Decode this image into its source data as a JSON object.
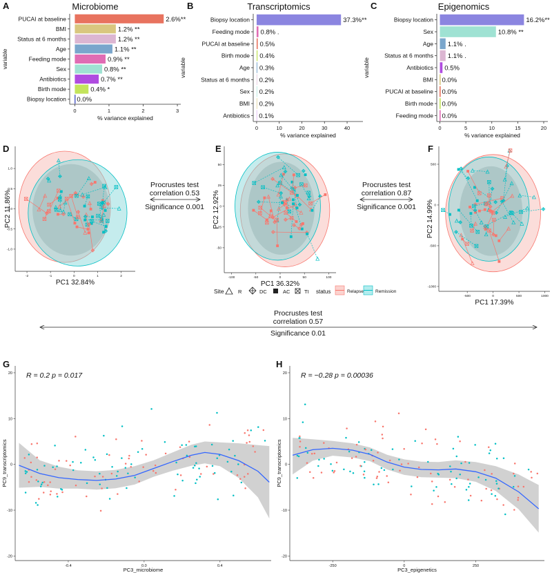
{
  "panels": {
    "A": {
      "letter": "A",
      "title": "Microbiome"
    },
    "B": {
      "letter": "B",
      "title": "Transcriptomics"
    },
    "C": {
      "letter": "C",
      "title": "Epigenomics"
    },
    "D": {
      "letter": "D"
    },
    "E": {
      "letter": "E"
    },
    "F": {
      "letter": "F"
    },
    "G": {
      "letter": "G"
    },
    "H": {
      "letter": "H"
    }
  },
  "procrustes": [
    {
      "title": "Procrustes test",
      "correlation": "correlation 0.53",
      "significance": "Significance 0.001"
    },
    {
      "title": "Procrustes test",
      "correlation": "correlation 0.87",
      "significance": "Significance 0.001"
    },
    {
      "title": "Procrustes test",
      "correlation": "correlation 0.57",
      "significance": "Significance 0.01"
    }
  ],
  "legend": {
    "site_title": "Site",
    "sites": [
      {
        "symbol": "triangle",
        "label": "R"
      },
      {
        "symbol": "diamond-plus",
        "label": "DC"
      },
      {
        "symbol": "square",
        "label": "AC"
      },
      {
        "symbol": "square-x",
        "label": "TI"
      }
    ],
    "status_title": "status",
    "statuses": [
      {
        "label": "Relapse",
        "color": "#f8766d"
      },
      {
        "label": "Remission",
        "color": "#00bfc4"
      }
    ]
  },
  "chart_data": [
    {
      "id": "A",
      "type": "bar",
      "title": "Microbiome",
      "categories": [
        "PUCAI at baseline",
        "BMI",
        "Status at 6 months",
        "Age",
        "Feeding mode",
        "Sex",
        "Antibiotics",
        "Birth mode",
        "Biopsy location"
      ],
      "values": [
        2.6,
        1.2,
        1.2,
        1.1,
        0.9,
        0.8,
        0.7,
        0.4,
        0.0
      ],
      "labels": [
        "2.6%**",
        "1.2% **",
        "1.2% **",
        "1.1% **",
        "0.9% **",
        "0.8% **",
        "0.7% **",
        "0.4% *",
        "0.0%"
      ],
      "colors": [
        "#e8735f",
        "#d9c77f",
        "#dcb6d2",
        "#7aa6cc",
        "#e06cb4",
        "#9fe2d3",
        "#b04ce0",
        "#c3e45c",
        "#5b67c9"
      ],
      "xlabel": "% variance explained",
      "ylabel": "variable",
      "xlim": [
        -0.15,
        3.1
      ],
      "xticks": [
        0,
        1,
        2,
        3
      ]
    },
    {
      "id": "B",
      "type": "bar",
      "title": "Transcriptomics",
      "categories": [
        "Biopsy location",
        "Feeding mode",
        "PUCAI at baseline",
        "Birth mode",
        "Age",
        "Status at 6 months",
        "Sex",
        "BMI",
        "Antibiotics"
      ],
      "values": [
        37.3,
        0.8,
        0.5,
        0.4,
        0.3,
        0.2,
        0.2,
        0.2,
        0.1
      ],
      "labels": [
        "37.3%**",
        "0.8% .",
        "0.5%",
        "0.4%",
        "0.3%",
        "0.2%",
        "0.2%",
        "0.2%",
        "0.1%"
      ],
      "colors": [
        "#8b85e0",
        "#e06cb4",
        "#e8735f",
        "#c3e45c",
        "#7aa6cc",
        "#dcb6d2",
        "#9fe2d3",
        "#d9c77f",
        "#b04ce0"
      ],
      "xlabel": "% variance explained",
      "ylabel": "variable",
      "xlim": [
        -1.5,
        47
      ],
      "xticks": [
        0,
        10,
        20,
        30,
        40
      ]
    },
    {
      "id": "C",
      "type": "bar",
      "title": "Epigenomics",
      "categories": [
        "Biopsy location",
        "Sex",
        "Age",
        "Status at 6 months",
        "Antibiotics",
        "BMI",
        "PUCAI at baseline",
        "Birth mode",
        "Feeding mode"
      ],
      "values": [
        16.2,
        10.8,
        1.1,
        1.1,
        0.5,
        0.0,
        0.0,
        0.0,
        0.0
      ],
      "labels": [
        "16.2%**",
        "10.8% **",
        "1.1% .",
        "1.1% .",
        "0.5%",
        "0.0%",
        "0.0%",
        "0.0%",
        "0.0%"
      ],
      "colors": [
        "#8b85e0",
        "#9fe2d3",
        "#7aa6cc",
        "#dcb6d2",
        "#b04ce0",
        "#d9c77f",
        "#e8735f",
        "#c3e45c",
        "#e06cb4"
      ],
      "xlabel": "% variance explained",
      "ylabel": "variable",
      "xlim": [
        -0.6,
        20.8
      ],
      "xticks": [
        0,
        5,
        10,
        15,
        20
      ]
    },
    {
      "id": "D",
      "type": "scatter",
      "xlabel": "PC1 32.84%",
      "ylabel": "PC2 11.86%",
      "xlim": [
        -2.5,
        2.6
      ],
      "ylim": [
        -1.55,
        1.55
      ],
      "xticks": [
        -2,
        -1,
        0,
        1,
        2
      ],
      "yticks": [
        -1.0,
        -0.5,
        0.0,
        0.5,
        1.0
      ],
      "ellipses": [
        {
          "status": "Relapse",
          "cx": -0.4,
          "cy": 0.05,
          "rx": 1.95,
          "ry": 1.38
        },
        {
          "status": "Remission",
          "cx": 0.15,
          "cy": -0.1,
          "rx": 2.1,
          "ry": 1.32
        }
      ]
    },
    {
      "id": "E",
      "type": "scatter",
      "xlabel": "PC1 36.32%",
      "ylabel": "PC2 12.92%",
      "xlim": [
        -115,
        115
      ],
      "ylim": [
        -80,
        72
      ],
      "xticks": [
        -100,
        -50,
        0,
        50,
        100
      ],
      "yticks": [
        -50,
        -25,
        0,
        25,
        50
      ],
      "ellipses": [
        {
          "status": "Relapse",
          "cx": 10,
          "cy": -5,
          "rx": 92,
          "ry": 68
        },
        {
          "status": "Remission",
          "cx": -5,
          "cy": 0,
          "rx": 88,
          "ry": 65
        }
      ]
    },
    {
      "id": "F",
      "type": "scatter",
      "xlabel": "PC1 17.39%",
      "ylabel": "PC2 14.99%",
      "xlim": [
        -1050,
        1100
      ],
      "ylim": [
        -1060,
        720
      ],
      "xticks": [
        -500,
        0,
        500,
        1000
      ],
      "yticks": [
        -1000,
        -500,
        0,
        500
      ],
      "ellipses": [
        {
          "status": "Relapse",
          "cx": 0,
          "cy": -100,
          "rx": 920,
          "ry": 720
        },
        {
          "status": "Remission",
          "cx": -80,
          "cy": -50,
          "rx": 780,
          "ry": 640
        }
      ]
    },
    {
      "id": "G",
      "type": "scatter",
      "xlabel": "PC3_microbiome",
      "ylabel": "PC9_transcriptomics",
      "annotation": "R = 0.2  p = 0.017",
      "xlim": [
        -0.68,
        0.67
      ],
      "ylim": [
        -21,
        21.5
      ],
      "xticks": [
        -0.4,
        0.0,
        0.4
      ],
      "yticks": [
        -20,
        -10,
        0,
        10,
        20
      ],
      "fit_x": [
        -0.66,
        -0.55,
        -0.45,
        -0.35,
        -0.25,
        -0.15,
        -0.05,
        0.05,
        0.15,
        0.25,
        0.32,
        0.4,
        0.5,
        0.6,
        0.66
      ],
      "fit_y": [
        -0.2,
        -2.0,
        -2.9,
        -3.3,
        -3.5,
        -3.2,
        -2.4,
        -0.9,
        0.6,
        2.0,
        2.6,
        2.2,
        0.8,
        -1.5,
        -3.9
      ],
      "band_upper": [
        4.7,
        0.9,
        -0.5,
        -1.3,
        -1.5,
        -1.2,
        -0.4,
        0.9,
        2.6,
        4.3,
        5.0,
        4.8,
        4.6,
        4.2,
        4.0
      ],
      "band_lower": [
        -5.1,
        -4.9,
        -5.3,
        -5.3,
        -5.5,
        -5.2,
        -4.4,
        -2.7,
        -1.4,
        -0.3,
        0.2,
        -0.4,
        -3.0,
        -7.2,
        -11.8
      ]
    },
    {
      "id": "H",
      "type": "scatter",
      "xlabel": "PC3_epigenetics",
      "ylabel": "PC9_transcriptomics",
      "annotation": "R = −0.28  p = 0.00036",
      "xlim": [
        -400,
        490
      ],
      "ylim": [
        -21,
        21.5
      ],
      "xticks": [
        -250,
        0,
        250
      ],
      "yticks": [
        -20,
        -10,
        0,
        10,
        20
      ],
      "fit_x": [
        -390,
        -320,
        -250,
        -180,
        -120,
        -60,
        0,
        60,
        120,
        180,
        250,
        320,
        400,
        470
      ],
      "fit_y": [
        2.0,
        3.2,
        3.5,
        3.1,
        2.2,
        0.5,
        -0.6,
        -1.1,
        -1.2,
        -1.0,
        -1.6,
        -3.0,
        -6.0,
        -9.7
      ],
      "band_upper": [
        5.8,
        5.5,
        5.1,
        4.6,
        3.7,
        2.1,
        1.1,
        0.6,
        0.5,
        0.9,
        0.5,
        -0.4,
        -2.2,
        -4.5
      ],
      "band_lower": [
        -2.2,
        0.8,
        1.9,
        1.5,
        0.7,
        -1.1,
        -2.3,
        -2.8,
        -2.9,
        -3.0,
        -3.8,
        -5.8,
        -9.8,
        -14.9
      ]
    }
  ]
}
